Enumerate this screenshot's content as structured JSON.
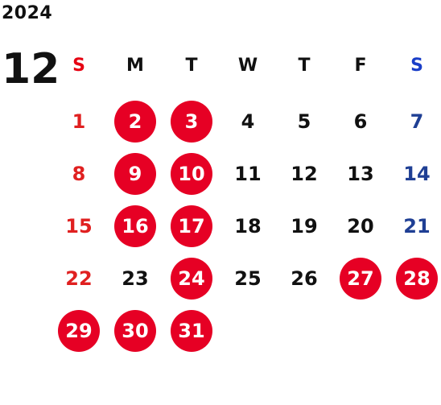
{
  "calendar": {
    "year": "2024",
    "month": "12",
    "weekdays": [
      "S",
      "M",
      "T",
      "W",
      "T",
      "F",
      "S"
    ],
    "weeks": [
      [
        {
          "day": "1",
          "type": "sun"
        },
        {
          "day": "2",
          "type": "hol"
        },
        {
          "day": "3",
          "type": "hol"
        },
        {
          "day": "4",
          "type": "wk"
        },
        {
          "day": "5",
          "type": "wk"
        },
        {
          "day": "6",
          "type": "wk"
        },
        {
          "day": "7",
          "type": "sat"
        }
      ],
      [
        {
          "day": "8",
          "type": "sun"
        },
        {
          "day": "9",
          "type": "hol"
        },
        {
          "day": "10",
          "type": "hol"
        },
        {
          "day": "11",
          "type": "wk"
        },
        {
          "day": "12",
          "type": "wk"
        },
        {
          "day": "13",
          "type": "wk"
        },
        {
          "day": "14",
          "type": "sat"
        }
      ],
      [
        {
          "day": "15",
          "type": "sun"
        },
        {
          "day": "16",
          "type": "hol"
        },
        {
          "day": "17",
          "type": "hol"
        },
        {
          "day": "18",
          "type": "wk"
        },
        {
          "day": "19",
          "type": "wk"
        },
        {
          "day": "20",
          "type": "wk"
        },
        {
          "day": "21",
          "type": "sat"
        }
      ],
      [
        {
          "day": "22",
          "type": "sun"
        },
        {
          "day": "23",
          "type": "wk"
        },
        {
          "day": "24",
          "type": "hol"
        },
        {
          "day": "25",
          "type": "wk"
        },
        {
          "day": "26",
          "type": "wk"
        },
        {
          "day": "27",
          "type": "hol"
        },
        {
          "day": "28",
          "type": "hol"
        }
      ],
      [
        {
          "day": "29",
          "type": "hol"
        },
        {
          "day": "30",
          "type": "hol"
        },
        {
          "day": "31",
          "type": "hol"
        }
      ]
    ]
  },
  "colors": {
    "highlight": "#e60024",
    "sunday": "#e02020",
    "saturday": "#1f3f94",
    "weekday": "#111111"
  }
}
